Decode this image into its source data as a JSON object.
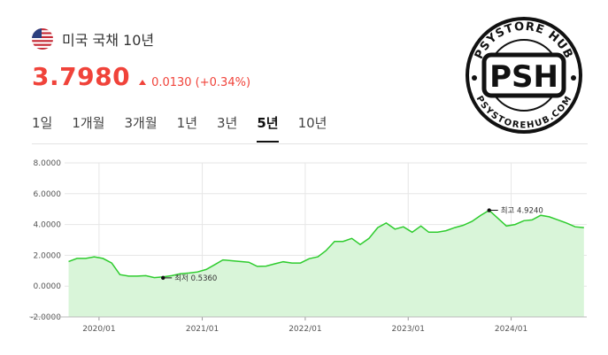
{
  "header": {
    "flag_icon": "us-flag-icon",
    "title": "미국 국채 10년",
    "price": "3.7980",
    "change": "0.0130 (+0.34%)",
    "change_direction_icon": "triangle-up-icon",
    "colors": {
      "up": "#f0433a"
    }
  },
  "tabs": [
    {
      "label": "1일",
      "active": false
    },
    {
      "label": "1개월",
      "active": false
    },
    {
      "label": "3개월",
      "active": false
    },
    {
      "label": "1년",
      "active": false
    },
    {
      "label": "3년",
      "active": false
    },
    {
      "label": "5년",
      "active": true
    },
    {
      "label": "10년",
      "active": false
    }
  ],
  "logo": {
    "initials": "PSH",
    "top_text": "PSYSTORE HUB",
    "bottom_text": "PSYSTOREHUB.COM"
  },
  "chart_data": {
    "type": "area",
    "colors": {
      "line": "#2ecc2e",
      "fill": "#d9f5d9"
    },
    "ylim": [
      -2,
      8
    ],
    "yticks": [
      "8.0000",
      "6.0000",
      "4.0000",
      "2.0000",
      "0.0000",
      "-2.0000"
    ],
    "xticks": [
      "2020/01",
      "2021/01",
      "2022/01",
      "2023/01",
      "2024/01"
    ],
    "x": [
      "2019-09",
      "2019-10",
      "2019-11",
      "2019-12",
      "2020-01",
      "2020-02",
      "2020-03",
      "2020-04",
      "2020-05",
      "2020-06",
      "2020-07",
      "2020-08",
      "2020-09",
      "2020-10",
      "2020-11",
      "2020-12",
      "2021-01",
      "2021-02",
      "2021-03",
      "2021-04",
      "2021-05",
      "2021-06",
      "2021-07",
      "2021-08",
      "2021-09",
      "2021-10",
      "2021-11",
      "2021-12",
      "2022-01",
      "2022-02",
      "2022-03",
      "2022-04",
      "2022-05",
      "2022-06",
      "2022-07",
      "2022-08",
      "2022-09",
      "2022-10",
      "2022-11",
      "2022-12",
      "2023-01",
      "2023-02",
      "2023-03",
      "2023-04",
      "2023-05",
      "2023-06",
      "2023-07",
      "2023-08",
      "2023-09",
      "2023-10",
      "2023-11",
      "2023-12",
      "2024-01",
      "2024-02",
      "2024-03",
      "2024-04",
      "2024-05",
      "2024-06",
      "2024-07",
      "2024-08",
      "2024-09"
    ],
    "values": [
      1.6,
      1.8,
      1.8,
      1.9,
      1.8,
      1.5,
      0.75,
      0.65,
      0.65,
      0.68,
      0.55,
      0.6,
      0.68,
      0.8,
      0.85,
      0.92,
      1.08,
      1.4,
      1.7,
      1.65,
      1.6,
      1.55,
      1.28,
      1.3,
      1.45,
      1.58,
      1.5,
      1.5,
      1.78,
      1.9,
      2.3,
      2.9,
      2.9,
      3.1,
      2.7,
      3.1,
      3.8,
      4.1,
      3.7,
      3.85,
      3.5,
      3.9,
      3.5,
      3.5,
      3.6,
      3.8,
      3.95,
      4.2,
      4.6,
      4.92,
      4.4,
      3.9,
      4.0,
      4.25,
      4.3,
      4.6,
      4.5,
      4.3,
      4.1,
      3.85,
      3.8
    ],
    "annotations": [
      {
        "label": "최저 0.5360",
        "x": "2020-08",
        "y": 0.536
      },
      {
        "label": "최고 4.9240",
        "x": "2023-10",
        "y": 4.924
      }
    ]
  }
}
